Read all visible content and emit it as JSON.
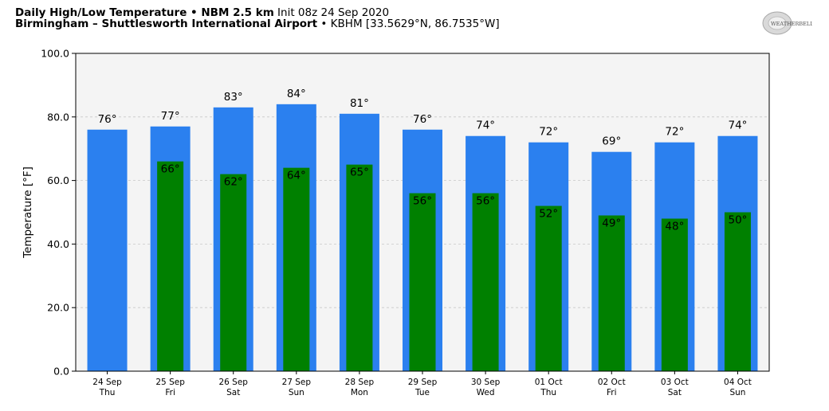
{
  "header": {
    "line1_bold": "Daily High/Low Temperature • NBM 2.5 km",
    "line1_normal": " Init 08z 24 Sep 2020",
    "line2_bold": "Birmingham – Shuttlesworth International Airport",
    "line2_normal": " • KBHM [33.5629°N, 86.7535°W]"
  },
  "logo": {
    "text": "WEATHERBELL"
  },
  "colors": {
    "high": "#2b80ef",
    "low": "#008000",
    "plot_bg": "#f4f4f4"
  },
  "chart_data": {
    "type": "bar",
    "title": "Daily High/Low Temperature • NBM 2.5 km",
    "ylabel": "Temperature [°F]",
    "ylim": [
      0,
      100
    ],
    "yticks": [
      "0.0",
      "20.0",
      "40.0",
      "60.0",
      "80.0",
      "100.0"
    ],
    "grid": true,
    "categories": [
      {
        "date": "24 Sep",
        "day": "Thu"
      },
      {
        "date": "25 Sep",
        "day": "Fri"
      },
      {
        "date": "26 Sep",
        "day": "Sat"
      },
      {
        "date": "27 Sep",
        "day": "Sun"
      },
      {
        "date": "28 Sep",
        "day": "Mon"
      },
      {
        "date": "29 Sep",
        "day": "Tue"
      },
      {
        "date": "30 Sep",
        "day": "Wed"
      },
      {
        "date": "01 Oct",
        "day": "Thu"
      },
      {
        "date": "02 Oct",
        "day": "Fri"
      },
      {
        "date": "03 Oct",
        "day": "Sat"
      },
      {
        "date": "04 Oct",
        "day": "Sun"
      }
    ],
    "series": [
      {
        "key": "high",
        "values": [
          76,
          77,
          83,
          84,
          81,
          76,
          74,
          72,
          69,
          72,
          74
        ],
        "labels": [
          "76°",
          "77°",
          "83°",
          "84°",
          "81°",
          "76°",
          "74°",
          "72°",
          "69°",
          "72°",
          "74°"
        ]
      },
      {
        "key": "low",
        "values": [
          null,
          66,
          62,
          64,
          65,
          56,
          56,
          52,
          49,
          48,
          50
        ],
        "labels": [
          "",
          "66°",
          "62°",
          "64°",
          "65°",
          "56°",
          "56°",
          "52°",
          "49°",
          "48°",
          "50°"
        ]
      }
    ]
  }
}
